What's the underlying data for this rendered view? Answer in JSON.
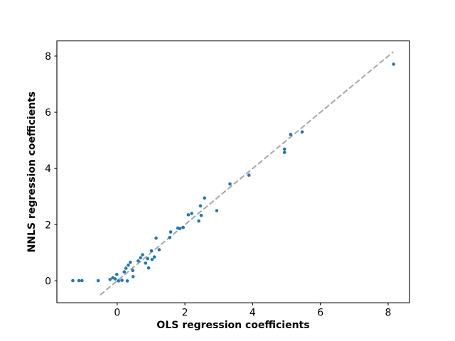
{
  "figure": {
    "background": "#ffffff"
  },
  "chart_data": {
    "type": "scatter",
    "title": "",
    "xlabel": "OLS regression coefficients",
    "ylabel": "NNLS regression coefficients",
    "xlim": [
      -1.78,
      8.63
    ],
    "ylim": [
      -0.78,
      8.54
    ],
    "xticks": [
      0,
      2,
      4,
      6,
      8
    ],
    "yticks": [
      0,
      2,
      4,
      6,
      8
    ],
    "grid": false,
    "legend": null,
    "marker_color": "#1f77b4",
    "marker_radius": 2.3,
    "identity_line": {
      "style": "dashed",
      "color": "#a6a6a6",
      "from": -0.5,
      "to": 8.15
    },
    "points": [
      [
        -1.31,
        0.01
      ],
      [
        -1.13,
        0.01
      ],
      [
        -1.04,
        0.01
      ],
      [
        -0.56,
        0.01
      ],
      [
        -0.21,
        0.05
      ],
      [
        -0.13,
        0.11
      ],
      [
        -0.06,
        0.07
      ],
      [
        0.04,
        0.0
      ],
      [
        0.14,
        0.02
      ],
      [
        0.3,
        0.0
      ],
      [
        -0.01,
        0.23
      ],
      [
        0.21,
        0.32
      ],
      [
        0.26,
        0.45
      ],
      [
        0.33,
        0.56
      ],
      [
        0.39,
        0.66
      ],
      [
        0.46,
        0.37
      ],
      [
        0.47,
        0.15
      ],
      [
        0.62,
        0.71
      ],
      [
        0.69,
        0.82
      ],
      [
        0.75,
        0.93
      ],
      [
        0.84,
        0.63
      ],
      [
        0.9,
        0.79
      ],
      [
        0.93,
        0.46
      ],
      [
        1.01,
        1.07
      ],
      [
        1.03,
        0.76
      ],
      [
        1.1,
        0.85
      ],
      [
        1.15,
        1.52
      ],
      [
        1.24,
        1.11
      ],
      [
        1.55,
        1.54
      ],
      [
        1.58,
        1.74
      ],
      [
        1.79,
        1.88
      ],
      [
        1.85,
        1.86
      ],
      [
        1.95,
        1.9
      ],
      [
        2.1,
        2.35
      ],
      [
        2.2,
        2.4
      ],
      [
        2.41,
        2.13
      ],
      [
        2.48,
        2.33
      ],
      [
        2.46,
        2.67
      ],
      [
        2.58,
        2.95
      ],
      [
        2.94,
        2.5
      ],
      [
        3.33,
        3.45
      ],
      [
        3.89,
        3.76
      ],
      [
        4.94,
        4.57
      ],
      [
        4.94,
        4.69
      ],
      [
        5.12,
        5.21
      ],
      [
        5.46,
        5.3
      ],
      [
        8.16,
        7.71
      ]
    ]
  }
}
